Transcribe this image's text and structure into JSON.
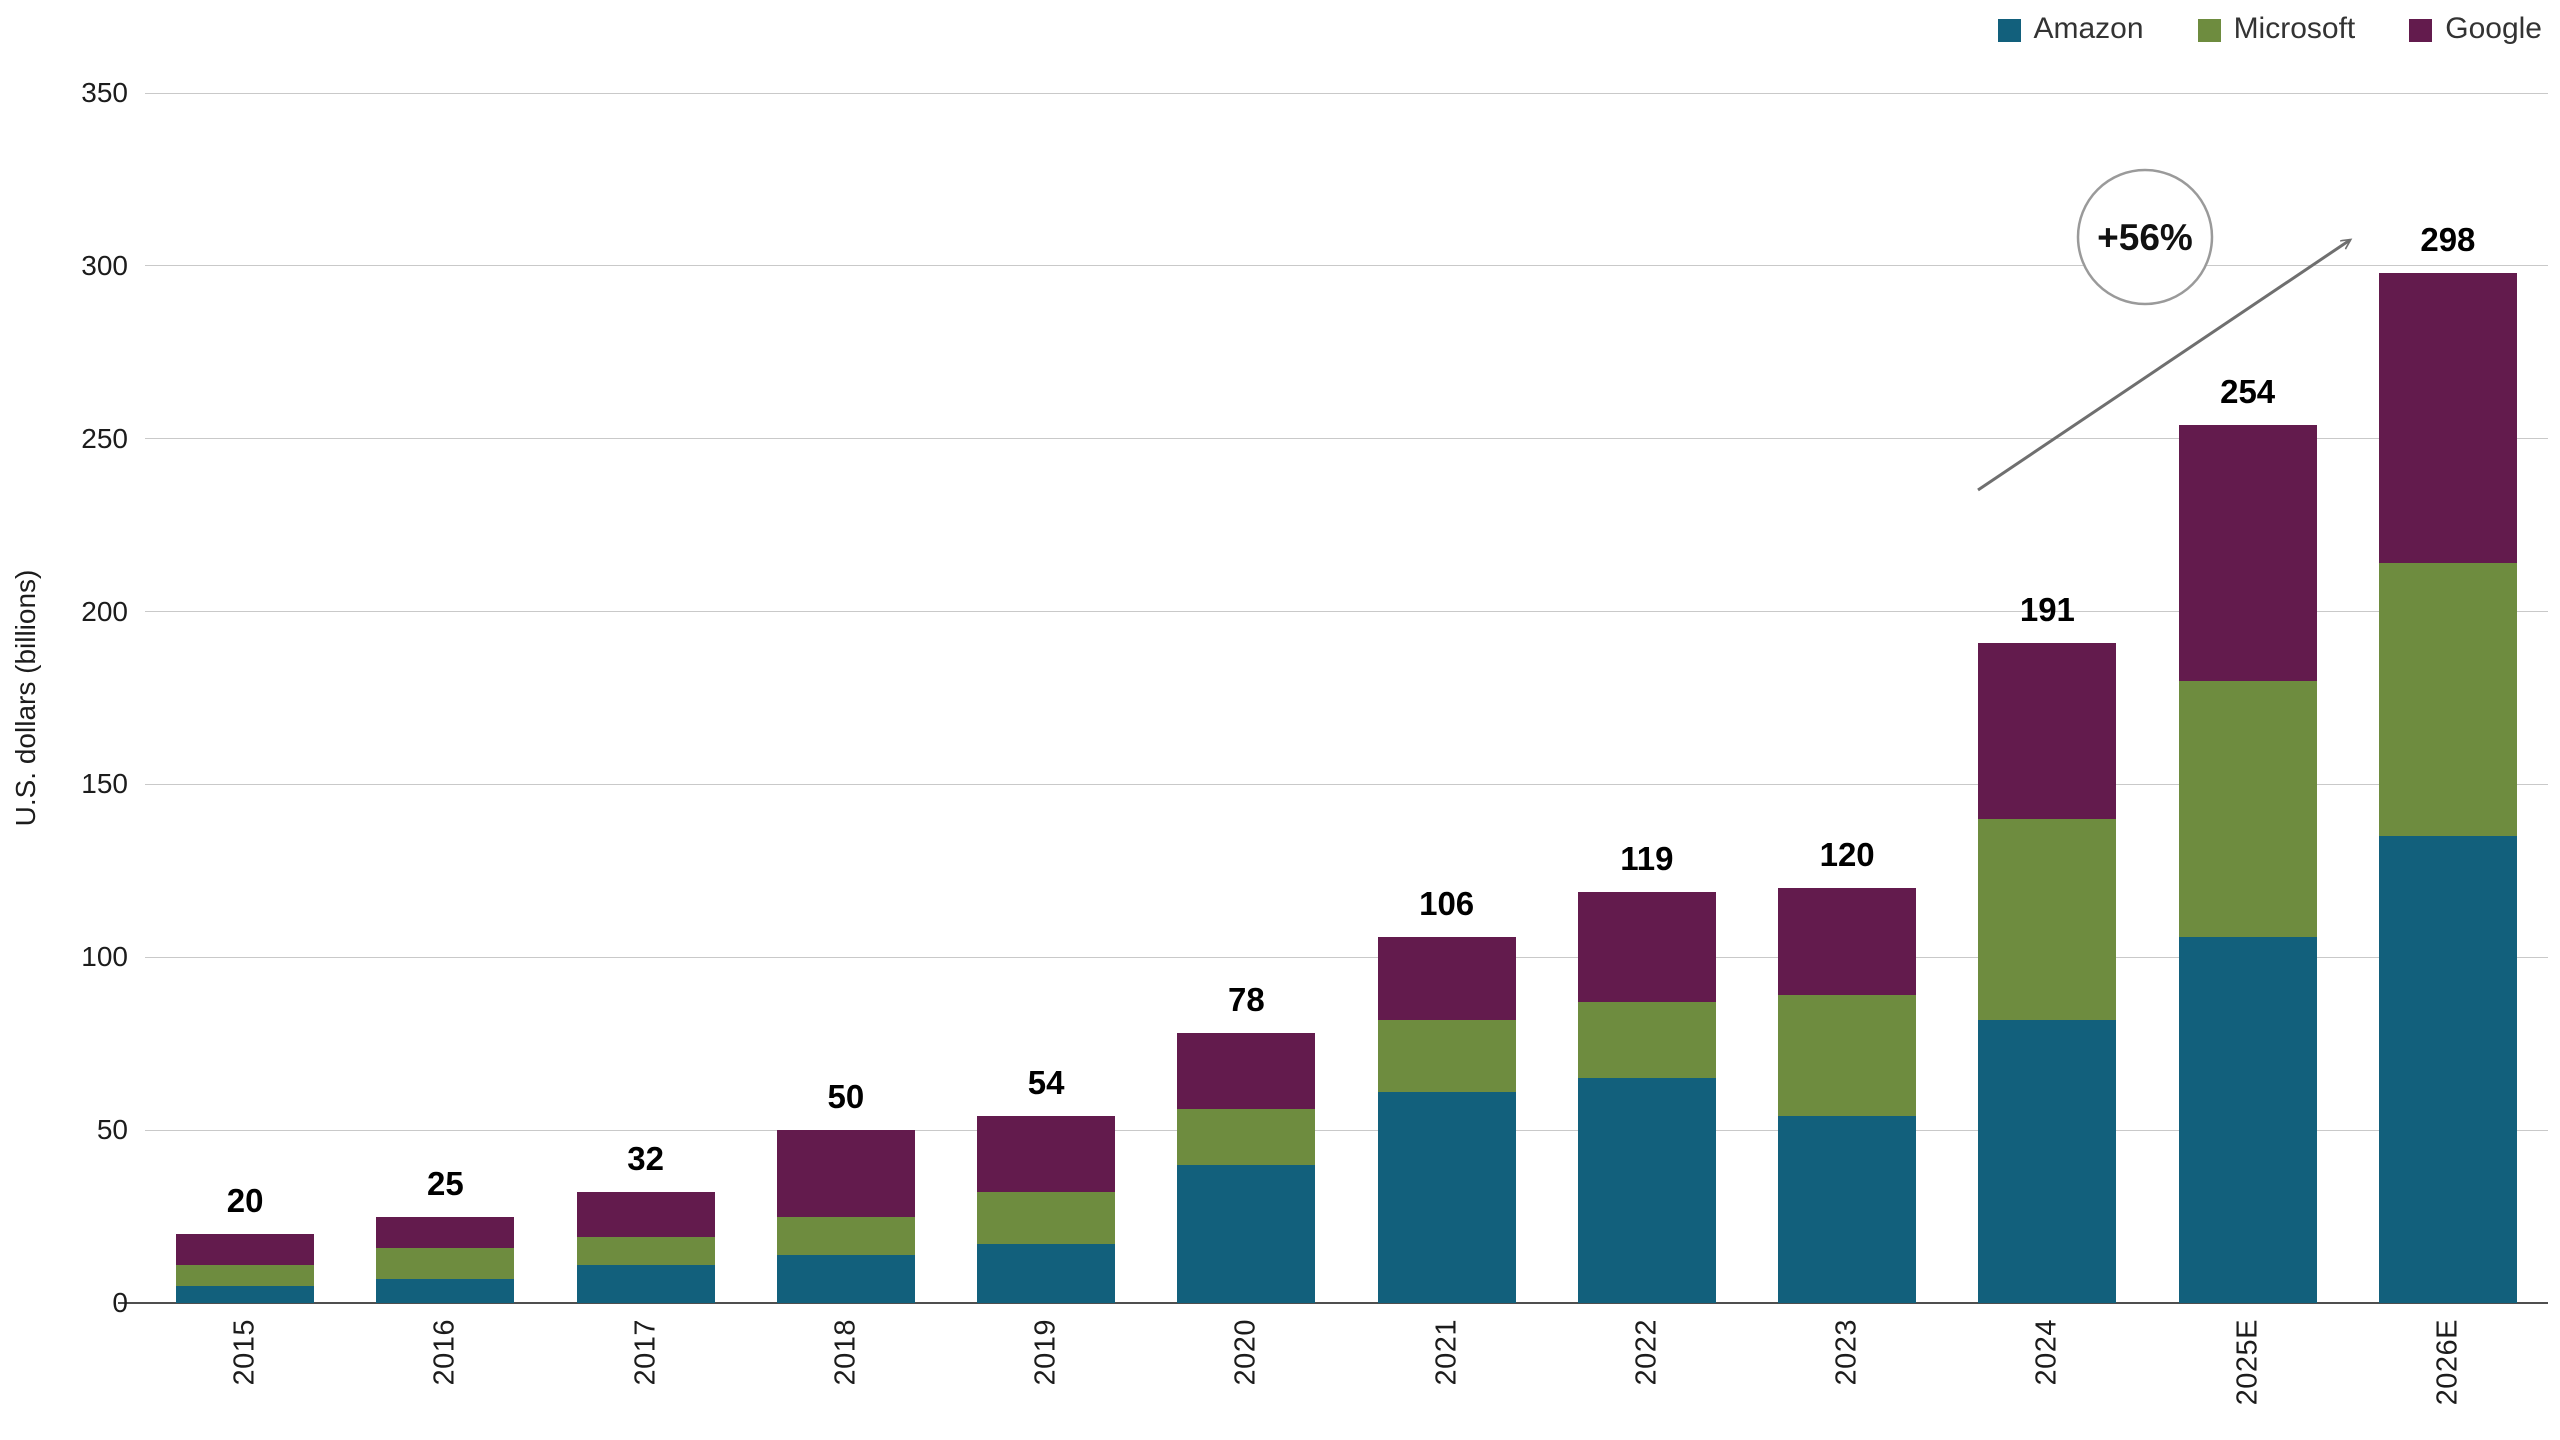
{
  "page": {
    "background": "#ffffff"
  },
  "legend": {
    "position": "top-right",
    "items": [
      {
        "label": "Amazon",
        "color": "#12607c"
      },
      {
        "label": "Microsoft",
        "color": "#6e8c3f"
      },
      {
        "label": "Google",
        "color": "#631b4d"
      }
    ]
  },
  "chart_data": {
    "type": "bar",
    "stacked": true,
    "title": "",
    "ylabel": "U.S. dollars (billions)",
    "ylim": [
      0,
      350
    ],
    "ytick_interval": 50,
    "grid": true,
    "legend_position": "top-right",
    "categories": [
      "2015",
      "2016",
      "2017",
      "2018",
      "2019",
      "2020",
      "2021",
      "2022",
      "2023",
      "2024",
      "2025E",
      "2026E"
    ],
    "series": [
      {
        "name": "Amazon",
        "color": "#12607c",
        "values": [
          5,
          7,
          11,
          14,
          17,
          40,
          61,
          65,
          54,
          82,
          106,
          135
        ]
      },
      {
        "name": "Microsoft",
        "color": "#6e8c3f",
        "values": [
          6,
          9,
          8,
          11,
          15,
          16,
          21,
          22,
          35,
          58,
          74,
          79
        ]
      },
      {
        "name": "Google",
        "color": "#631b4d",
        "values": [
          9,
          9,
          13,
          25,
          22,
          22,
          24,
          32,
          31,
          51,
          74,
          84
        ]
      }
    ],
    "totals": [
      20,
      25,
      32,
      50,
      54,
      78,
      106,
      119,
      120,
      191,
      254,
      298
    ],
    "annotation": {
      "label": "+56%"
    }
  }
}
